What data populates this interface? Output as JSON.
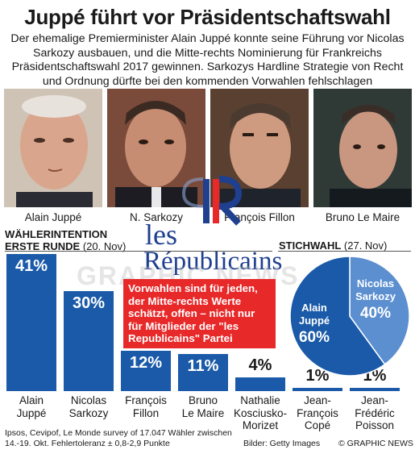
{
  "headline": "Juppé führt vor Präsidentschaftswahl",
  "intro": "Der ehemalige Premierminister Alain Juppé konnte seine Führung vor Nicolas Sarkozy ausbauen, und die Mitte-rechts Nominierung für Frankreichs Präsidentschaftswahl 2017 gewinnen. Sarkozys Hardline Strategie bei den kommenden Vorwahlen fehlschlagen",
  "intro_lines": [
    "Der ehemalige Premierminister Alain Juppé konnte seine Führung vor Nicolas",
    "Sarkozy ausbauen, und die Mitte-rechts Nominierung für Frankreichs",
    "Präsidentschaftswahl 2017 gewinnen. Sarkozys Hardline Strategie von Recht",
    "und Ordnung dürfte bei den kommenden Vorwahlen fehlschlagen"
  ],
  "photos": [
    {
      "name": "Alain Juppé"
    },
    {
      "name": "N. Sarkozy"
    },
    {
      "name": "François Fillon"
    },
    {
      "name": "Bruno Le Maire"
    }
  ],
  "first_round": {
    "label_line1": "WÄHLERINTENTION",
    "label_bold": "ERSTE RUNDE",
    "label_date": "(20. Nov)"
  },
  "runoff": {
    "label_bold": "STICHWAHL",
    "label_date": "(27. Nov)"
  },
  "logo": {
    "line1": "les",
    "line2": "Républicains"
  },
  "watermark": "GRAPHIC NEWS",
  "note_box": "Vorwahlen sind für jeden, der Mitte-rechts Werte schätzt, offen – nicht nur für Mitglieder der \"les Republicains\" Partei",
  "note_lines": [
    "Vorwahlen sind für jeden,",
    "der Mitte-rechts Werte",
    "schätzt, offen – nicht nur",
    "für Mitglieder der \"les",
    "Republicains\" Partei"
  ],
  "footer": {
    "source_line1": "Ipsos, Cevipof, Le Monde survey of 17.047 Wähler zwischen",
    "source_line2": "14.-19. Okt. Fehlertoleranz ± 0,8-2,9 Punkte",
    "credit_photos": "Bilder: Getty Images",
    "credit": "© GRAPHIC NEWS"
  },
  "colors": {
    "bar": "#1a5aa8",
    "pie_light": "#5b8fd0",
    "note": "#e8292a"
  },
  "chart_data": [
    {
      "type": "bar",
      "title": "WÄHLERINTENTION ERSTE RUNDE (20. Nov)",
      "categories": [
        "Alain Juppé",
        "Nicolas Sarkozy",
        "François Fillon",
        "Bruno Le Maire",
        "Nathalie Kosciusko-Morizet",
        "Jean-François Copé",
        "Jean-Frédéric Poisson"
      ],
      "category_lines": [
        [
          "Alain",
          "Juppé"
        ],
        [
          "Nicolas",
          "Sarkozy"
        ],
        [
          "François",
          "Fillon"
        ],
        [
          "Bruno",
          "Le Maire"
        ],
        [
          "Nathalie",
          "Kosciusko-",
          "Morizet"
        ],
        [
          "Jean-",
          "François",
          "Copé"
        ],
        [
          "Jean-",
          "Frédéric",
          "Poisson"
        ]
      ],
      "values": [
        41,
        30,
        12,
        11,
        4,
        1,
        1
      ],
      "value_labels": [
        "41%",
        "30%",
        "12%",
        "11%",
        "4%",
        "1%",
        "1%"
      ],
      "unit": "%",
      "ylim": [
        0,
        41
      ]
    },
    {
      "type": "pie",
      "title": "STICHWAHL (27. Nov)",
      "categories": [
        "Alain Juppé",
        "Nicolas Sarkozy"
      ],
      "values": [
        60,
        40
      ],
      "value_labels": [
        "60%",
        "40%"
      ],
      "colors": [
        "#1a5aa8",
        "#5b8fd0"
      ]
    }
  ]
}
